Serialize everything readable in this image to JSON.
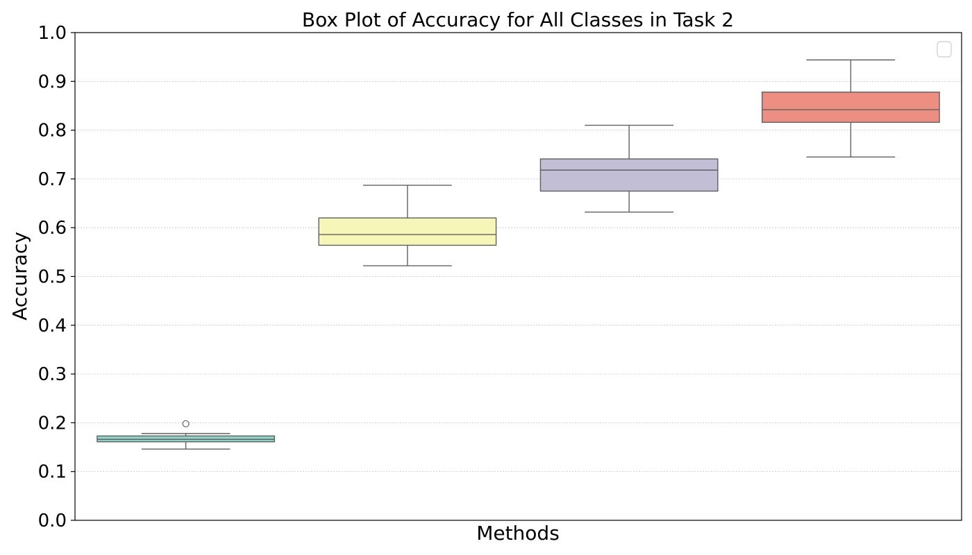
{
  "chart_data": {
    "type": "box",
    "title": "Box Plot of Accuracy for All Classes in Task 2",
    "xlabel": "Methods",
    "ylabel": "Accuracy",
    "ylim": [
      0.0,
      1.0
    ],
    "yticks": [
      "0.0",
      "0.1",
      "0.2",
      "0.3",
      "0.4",
      "0.5",
      "0.6",
      "0.7",
      "0.8",
      "0.9",
      "1.0"
    ],
    "grid": "horizontal-dotted",
    "legend": "top-right-empty",
    "series": [
      {
        "whisker_low": 0.146,
        "q1": 0.161,
        "median": 0.166,
        "q3": 0.173,
        "whisker_high": 0.178,
        "outliers": [
          0.198
        ],
        "color": "#8dd3c7"
      },
      {
        "whisker_low": 0.522,
        "q1": 0.564,
        "median": 0.586,
        "q3": 0.62,
        "whisker_high": 0.687,
        "outliers": [],
        "color": "#f7f6b9"
      },
      {
        "whisker_low": 0.632,
        "q1": 0.675,
        "median": 0.718,
        "q3": 0.741,
        "whisker_high": 0.81,
        "outliers": [],
        "color": "#c2bed6"
      },
      {
        "whisker_low": 0.745,
        "q1": 0.816,
        "median": 0.842,
        "q3": 0.878,
        "whisker_high": 0.944,
        "outliers": [],
        "color": "#ed8e83"
      }
    ]
  }
}
